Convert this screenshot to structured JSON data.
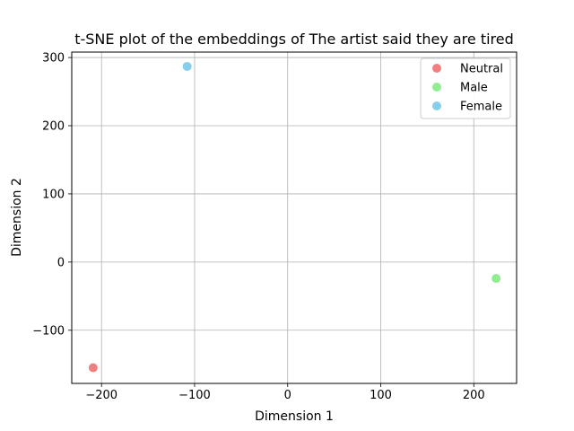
{
  "chart_data": {
    "type": "scatter",
    "title": "t-SNE plot of the embeddings of The artist said they are tired",
    "xlabel": "Dimension 1",
    "ylabel": "Dimension 2",
    "xlim": [
      -232,
      246
    ],
    "ylim": [
      -178,
      308
    ],
    "xticks": [
      -200,
      -100,
      0,
      100,
      200
    ],
    "yticks": [
      -100,
      0,
      100,
      200,
      300
    ],
    "xtick_labels": [
      "−200",
      "−100",
      "0",
      "100",
      "200"
    ],
    "ytick_labels": [
      "−100",
      "0",
      "100",
      "200",
      "300"
    ],
    "grid": true,
    "legend_position": "top-right",
    "series": [
      {
        "name": "Neutral",
        "color": "#f08080",
        "points": [
          {
            "x": -209,
            "y": -155
          }
        ]
      },
      {
        "name": "Male",
        "color": "#90ee90",
        "points": [
          {
            "x": 224,
            "y": -24
          }
        ]
      },
      {
        "name": "Female",
        "color": "#87ceeb",
        "points": [
          {
            "x": -108,
            "y": 287
          }
        ]
      }
    ]
  }
}
